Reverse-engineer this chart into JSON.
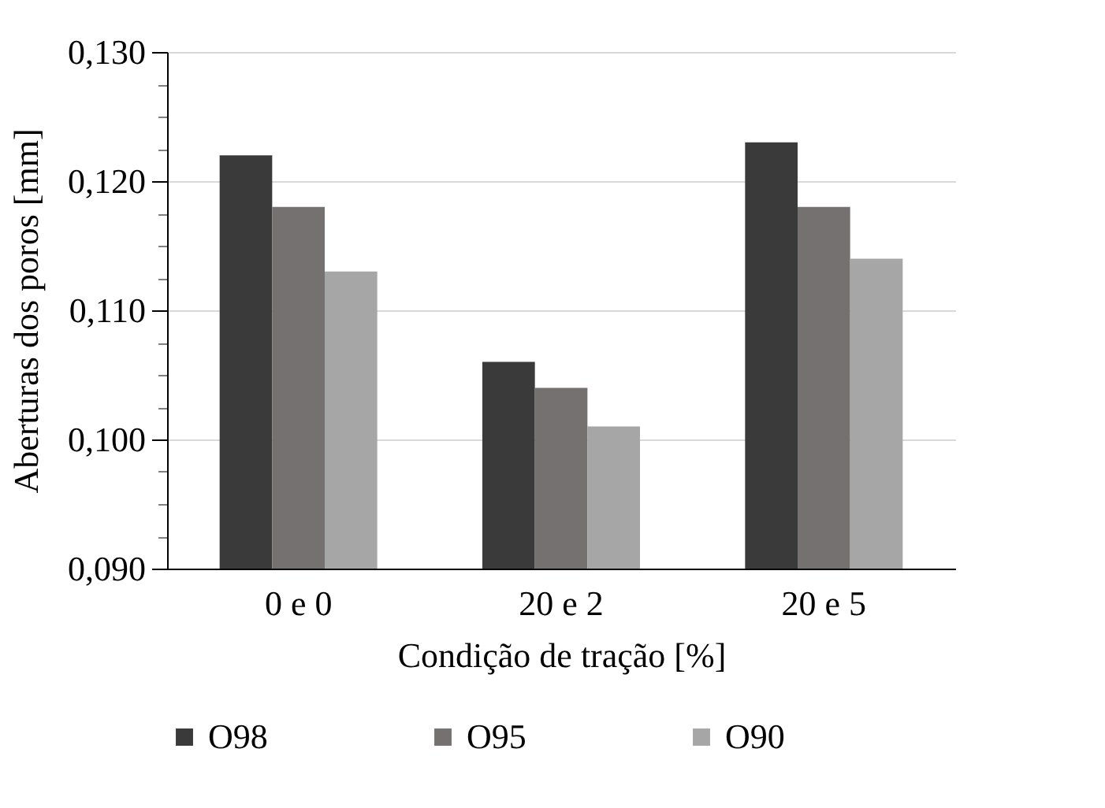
{
  "chart_data": {
    "type": "bar",
    "xlabel": "Condição de tração [%]",
    "ylabel": "Aberturas dos poros [mm]",
    "categories": [
      "0 e 0",
      "20 e 2",
      "20 e 5"
    ],
    "series": [
      {
        "name": "O98",
        "color": "#3a3a3a",
        "values": [
          0.122,
          0.106,
          0.123
        ]
      },
      {
        "name": "O95",
        "color": "#767171",
        "values": [
          0.118,
          0.104,
          0.118
        ]
      },
      {
        "name": "O90",
        "color": "#a6a6a6",
        "values": [
          0.113,
          0.101,
          0.114
        ]
      }
    ],
    "ylim": [
      0.09,
      0.13
    ],
    "yticks": [
      {
        "value": 0.09,
        "label": "0,090"
      },
      {
        "value": 0.0925,
        "label": null
      },
      {
        "value": 0.095,
        "label": null
      },
      {
        "value": 0.0975,
        "label": null
      },
      {
        "value": 0.1,
        "label": "0,100"
      },
      {
        "value": 0.1025,
        "label": null
      },
      {
        "value": 0.105,
        "label": null
      },
      {
        "value": 0.1075,
        "label": null
      },
      {
        "value": 0.11,
        "label": "0,110"
      },
      {
        "value": 0.1125,
        "label": null
      },
      {
        "value": 0.115,
        "label": null
      },
      {
        "value": 0.1175,
        "label": null
      },
      {
        "value": 0.12,
        "label": "0,120"
      },
      {
        "value": 0.1225,
        "label": null
      },
      {
        "value": 0.125,
        "label": null
      },
      {
        "value": 0.1275,
        "label": null
      },
      {
        "value": 0.13,
        "label": "0,130"
      }
    ],
    "grid": "y",
    "legend": "bottom"
  }
}
